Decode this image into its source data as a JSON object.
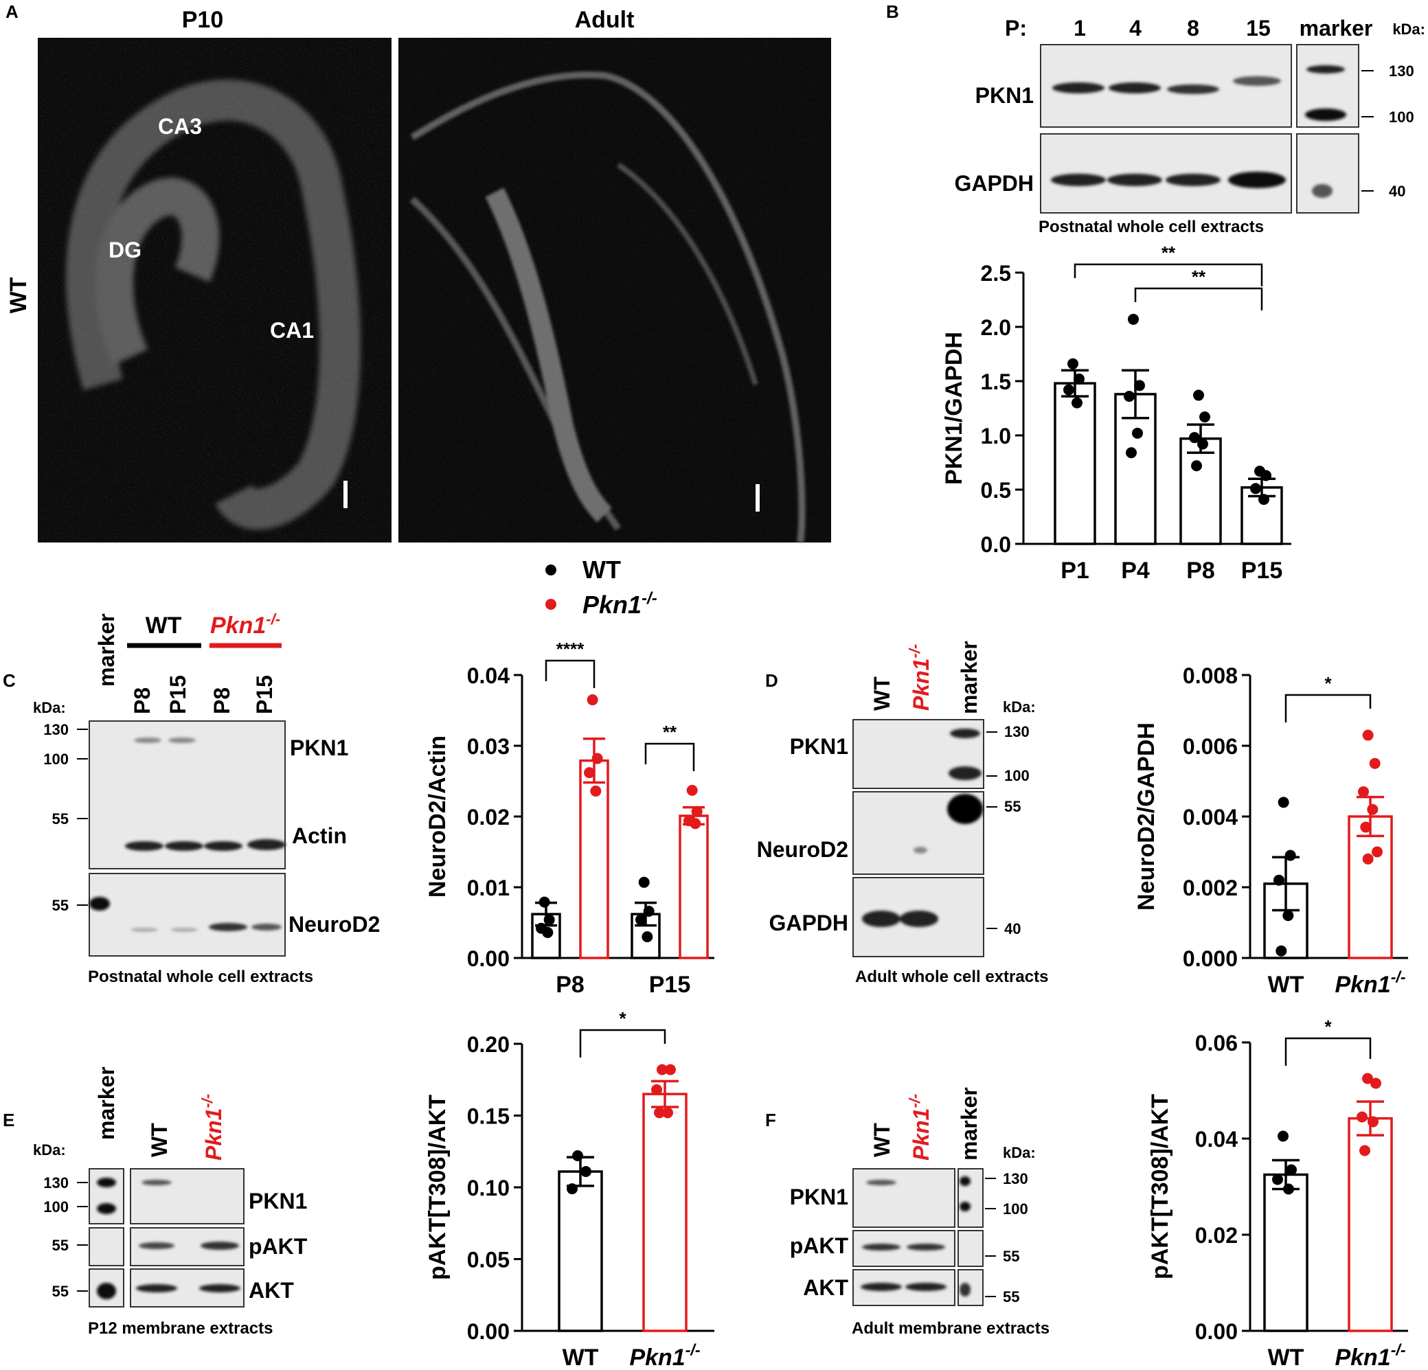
{
  "colors": {
    "wt": "#000000",
    "ko": "#e31a1c",
    "blot_bg": "#e9e9e9",
    "micro_bg": "#0b0b0b"
  },
  "panel_letters": [
    "A",
    "B",
    "C",
    "D",
    "E",
    "F"
  ],
  "panel_a": {
    "col_titles": [
      "P10",
      "Adult"
    ],
    "row_label": "WT",
    "regions": [
      "CA3",
      "DG",
      "CA1"
    ]
  },
  "panel_b_blot": {
    "p_label": "P:",
    "lanes": [
      "1",
      "4",
      "8",
      "15"
    ],
    "marker": "marker",
    "kda": "kDa:",
    "proteins": [
      "PKN1",
      "GAPDH"
    ],
    "marker_sizes": [
      "130",
      "100",
      "40"
    ],
    "caption": "Postnatal whole cell extracts"
  },
  "legend": {
    "wt": "WT",
    "ko_base": "Pkn1",
    "ko_sup": "-/-"
  },
  "panel_c_blot": {
    "marker": "marker",
    "group_wt": "WT",
    "lanes": [
      "P8",
      "P15",
      "P8",
      "P15"
    ],
    "kda": "kDa:",
    "sizes": [
      "130",
      "100",
      "55",
      "55"
    ],
    "proteins": [
      "PKN1",
      "Actin",
      "NeuroD2"
    ],
    "caption": "Postnatal whole cell extracts"
  },
  "panel_d_blot": {
    "lanes": [
      "WT",
      "Pkn1-/-",
      "marker"
    ],
    "kda": "kDa:",
    "sizes": [
      "130",
      "100",
      "55",
      "40"
    ],
    "proteins": [
      "PKN1",
      "NeuroD2",
      "GAPDH"
    ],
    "caption": "Adult whole cell extracts"
  },
  "panel_e_blot": {
    "lanes": [
      "marker",
      "WT",
      "Pkn1-/-"
    ],
    "kda": "kDa:",
    "sizes": [
      "130",
      "100",
      "55",
      "55"
    ],
    "proteins": [
      "PKN1",
      "pAKT",
      "AKT"
    ],
    "caption": "P12 membrane extracts"
  },
  "panel_f_blot": {
    "lanes": [
      "WT",
      "Pkn1-/-",
      "marker"
    ],
    "kda": "kDa:",
    "sizes": [
      "130",
      "100",
      "55",
      "55"
    ],
    "proteins": [
      "PKN1",
      "pAKT",
      "AKT"
    ],
    "caption": "Adult membrane extracts"
  },
  "chart_data": [
    {
      "id": "B",
      "type": "bar",
      "ylabel": "PKN1/GAPDH",
      "ylim": [
        0,
        2.5
      ],
      "yticks": [
        "0.0",
        "0.5",
        "1.0",
        "1.5",
        "2.0",
        "2.5"
      ],
      "categories": [
        "P1",
        "P4",
        "P8",
        "P15"
      ],
      "means": [
        1.48,
        1.38,
        0.97,
        0.52
      ],
      "sem": [
        0.12,
        0.22,
        0.13,
        0.08
      ],
      "points": [
        [
          1.66,
          1.52,
          1.42,
          1.3
        ],
        [
          2.07,
          1.46,
          1.36,
          1.02,
          0.84
        ],
        [
          1.37,
          1.17,
          0.98,
          0.92,
          0.72
        ],
        [
          0.67,
          0.63,
          0.51,
          0.41
        ]
      ],
      "significance": [
        {
          "from": 0,
          "to": 3,
          "label": "**"
        },
        {
          "from": 1,
          "to": 3,
          "label": "**"
        }
      ]
    },
    {
      "id": "C",
      "type": "bar",
      "ylabel": "NeuroD2/Actin",
      "ylim": [
        0,
        0.04
      ],
      "yticks": [
        "0.00",
        "0.01",
        "0.02",
        "0.03",
        "0.04"
      ],
      "categories": [
        "P8",
        "P15"
      ],
      "series": [
        {
          "group": "WT",
          "means": [
            0.0062,
            0.0062
          ],
          "sem": [
            0.0016,
            0.0016
          ],
          "points": [
            [
              0.0079,
              0.0054,
              0.0042,
              0.0036
            ],
            [
              0.0107,
              0.0066,
              0.0054,
              0.003
            ]
          ]
        },
        {
          "group": "Pkn1-/-",
          "means": [
            0.0279,
            0.0201
          ],
          "sem": [
            0.0031,
            0.0012
          ],
          "points": [
            [
              0.0365,
              0.0282,
              0.0262,
              0.0236
            ],
            [
              0.0237,
              0.0207,
              0.0194,
              0.019
            ]
          ]
        }
      ],
      "significance": [
        {
          "category": 0,
          "label": "****"
        },
        {
          "category": 1,
          "label": "**"
        }
      ]
    },
    {
      "id": "D",
      "type": "bar",
      "ylabel": "NeuroD2/GAPDH",
      "ylim": [
        0,
        0.008
      ],
      "yticks": [
        "0.000",
        "0.002",
        "0.004",
        "0.006",
        "0.008"
      ],
      "categories": [
        "WT",
        "Pkn1-/-"
      ],
      "means": [
        0.0021,
        0.004
      ],
      "sem": [
        0.00075,
        0.00055
      ],
      "points": [
        [
          0.0044,
          0.0029,
          0.0022,
          0.0012,
          0.0002
        ],
        [
          0.0063,
          0.0055,
          0.0047,
          0.0042,
          0.0037,
          0.003,
          0.0028
        ]
      ],
      "significance": [
        {
          "from": 0,
          "to": 1,
          "label": "*"
        }
      ]
    },
    {
      "id": "E",
      "type": "bar",
      "ylabel": "pAKT[T308]/AKT",
      "ylim": [
        0,
        0.2
      ],
      "yticks": [
        "0.00",
        "0.05",
        "0.10",
        "0.15",
        "0.20"
      ],
      "categories": [
        "WT",
        "Pkn1-/-"
      ],
      "means": [
        0.111,
        0.165
      ],
      "sem": [
        0.01,
        0.009
      ],
      "points": [
        [
          0.122,
          0.111,
          0.099
        ],
        [
          0.182,
          0.182,
          0.168,
          0.152,
          0.152
        ]
      ],
      "significance": [
        {
          "from": 0,
          "to": 1,
          "label": "*"
        }
      ]
    },
    {
      "id": "F",
      "type": "bar",
      "ylabel": "pAKT[T308]/AKT",
      "ylim": [
        0,
        0.06
      ],
      "yticks": [
        "0.00",
        "0.02",
        "0.04",
        "0.06"
      ],
      "categories": [
        "WT",
        "Pkn1-/-"
      ],
      "means": [
        0.0325,
        0.0442
      ],
      "sem": [
        0.003,
        0.0035
      ],
      "points": [
        [
          0.0405,
          0.0335,
          0.0315,
          0.0295
        ],
        [
          0.0525,
          0.0515,
          0.0445,
          0.0435,
          0.0375
        ]
      ],
      "significance": [
        {
          "from": 0,
          "to": 1,
          "label": "*"
        }
      ]
    }
  ]
}
